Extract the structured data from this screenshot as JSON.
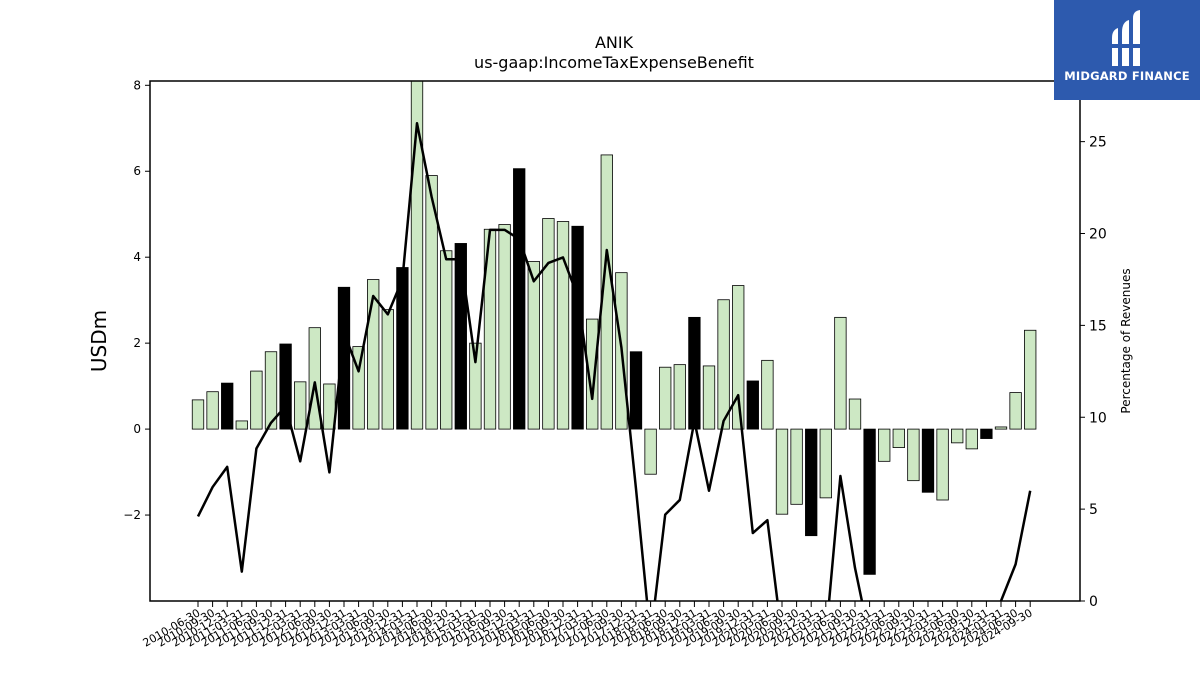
{
  "chart_data": {
    "type": "bar",
    "title": "ANIK",
    "subtitle": "us-gaap:IncomeTaxExpenseBenefit",
    "ylabel": "USDm",
    "y2label": "Percentage of Revenues",
    "ylim": [
      -4.0,
      8.1
    ],
    "y2lim": [
      0,
      28.3
    ],
    "yticks": [
      -2,
      0,
      2,
      4,
      6,
      8
    ],
    "y2ticks": [
      0,
      5,
      10,
      15,
      20,
      25
    ],
    "grid": false,
    "categories": [
      "2010-06-30",
      "2010-09-30",
      "2010-12-31",
      "2011-03-31",
      "2011-06-30",
      "2011-09-30",
      "2011-12-31",
      "2012-03-31",
      "2012-06-30",
      "2012-09-30",
      "2012-12-31",
      "2013-03-31",
      "2013-06-30",
      "2013-09-30",
      "2013-12-31",
      "2014-03-31",
      "2014-06-30",
      "2014-09-30",
      "2014-12-31",
      "2015-03-31",
      "2015-06-30",
      "2015-09-30",
      "2015-12-31",
      "2016-03-31",
      "2016-06-30",
      "2016-09-30",
      "2016-12-31",
      "2017-03-31",
      "2017-06-30",
      "2017-09-30",
      "2017-12-31",
      "2018-03-31",
      "2018-06-30",
      "2018-09-30",
      "2018-12-31",
      "2019-03-31",
      "2019-06-30",
      "2019-09-30",
      "2019-12-31",
      "2020-03-31",
      "2020-06-30",
      "2020-09-30",
      "2020-12-31",
      "2021-03-31",
      "2021-06-30",
      "2021-09-30",
      "2021-12-31",
      "2022-03-31",
      "2022-06-30",
      "2022-09-30",
      "2022-12-31",
      "2023-03-31",
      "2023-06-30",
      "2023-09-30",
      "2023-12-31",
      "2024-03-31",
      "2024-06-30",
      "2024-09-30"
    ],
    "series": [
      {
        "kind": "bar",
        "values": [
          0.68,
          0.87,
          1.07,
          0.19,
          1.35,
          1.8,
          1.98,
          1.1,
          2.36,
          1.05,
          3.3,
          1.92,
          3.48,
          2.78,
          3.76,
          8.15,
          5.9,
          4.15,
          4.32,
          2.0,
          4.65,
          4.76,
          6.06,
          3.9,
          4.9,
          4.83,
          4.72,
          2.56,
          6.38,
          3.64,
          1.8,
          -1.05,
          1.44,
          1.5,
          2.6,
          1.47,
          3.01,
          3.34,
          1.12,
          1.6,
          -1.98,
          -1.75,
          -2.48,
          -1.6,
          2.6,
          0.7,
          -3.38,
          -0.75,
          -0.43,
          -1.2,
          -1.47,
          -1.65,
          -0.32,
          -0.46,
          -0.22,
          0.05,
          0.85,
          2.3
        ],
        "highlight": [
          false,
          false,
          true,
          false,
          false,
          false,
          true,
          false,
          false,
          false,
          true,
          false,
          false,
          false,
          true,
          false,
          false,
          false,
          true,
          false,
          false,
          false,
          true,
          false,
          false,
          false,
          true,
          false,
          false,
          false,
          true,
          false,
          false,
          false,
          true,
          false,
          false,
          false,
          true,
          false,
          false,
          false,
          true,
          false,
          false,
          false,
          true,
          false,
          false,
          false,
          true,
          false,
          false,
          false,
          true,
          false,
          false,
          false
        ],
        "color": "#cde8c4",
        "highlight_color": "#000000"
      },
      {
        "kind": "line",
        "axis": "secondary",
        "values": [
          4.6,
          6.2,
          7.3,
          1.6,
          8.3,
          9.7,
          10.6,
          7.6,
          11.9,
          7.0,
          14.6,
          12.5,
          16.6,
          15.6,
          17.5,
          26.0,
          22.0,
          18.6,
          18.6,
          13.0,
          20.2,
          20.2,
          19.7,
          17.4,
          18.4,
          18.7,
          16.6,
          11.0,
          19.1,
          13.8,
          6.1,
          -2.0,
          4.7,
          5.5,
          9.8,
          6.0,
          9.8,
          11.2,
          3.7,
          4.4,
          -2.0,
          -2.0,
          -2.0,
          -2.0,
          6.8,
          1.8,
          -2.0,
          -2.0,
          -2.0,
          -2.0,
          -2.0,
          -2.0,
          -2.0,
          -2.0,
          -2.0,
          0.0,
          2.0,
          6.0
        ],
        "color": "#000000"
      }
    ]
  },
  "logo": {
    "text": "MIDGARD FINANCE",
    "icon": "midgard-logo-icon",
    "background": "#2d5aae"
  }
}
